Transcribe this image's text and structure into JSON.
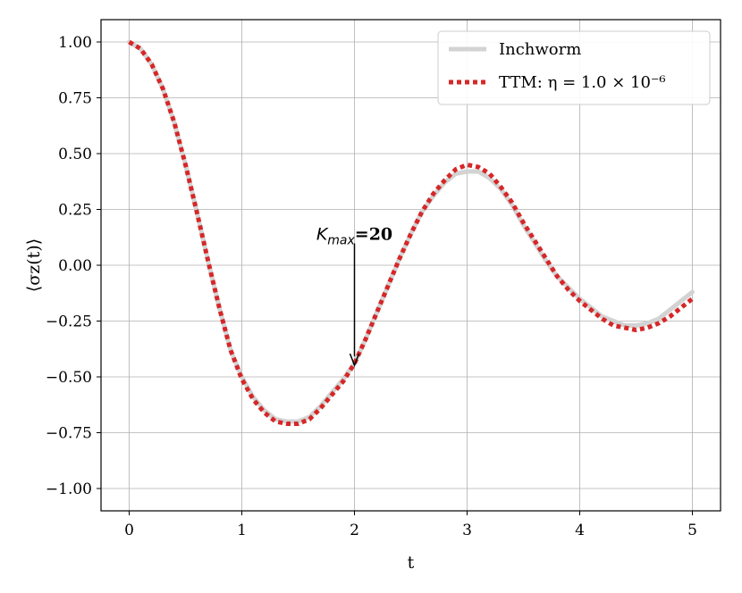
{
  "chart_data": {
    "type": "line",
    "xlabel": "t",
    "ylabel": "⟨σz(t)⟩",
    "xlim": [
      -0.25,
      5.25
    ],
    "ylim": [
      -1.1,
      1.1
    ],
    "x_ticks": [
      0,
      1,
      2,
      3,
      4,
      5
    ],
    "x_tick_labels": [
      "0",
      "1",
      "2",
      "3",
      "4",
      "5"
    ],
    "y_ticks": [
      1.0,
      0.75,
      0.5,
      0.25,
      0.0,
      -0.25,
      -0.5,
      -0.75,
      -1.0
    ],
    "y_tick_labels": [
      "1.00",
      "0.75",
      "0.50",
      "0.25",
      "0.00",
      "−0.25",
      "−0.50",
      "−0.75",
      "−1.00"
    ],
    "grid": true,
    "legend_position": "top-right",
    "series": [
      {
        "name": "Inchworm",
        "color": "#d3d3d3",
        "style": "solid",
        "x": [
          0,
          0.1,
          0.2,
          0.3,
          0.4,
          0.5,
          0.6,
          0.7,
          0.8,
          0.9,
          1.0,
          1.1,
          1.2,
          1.3,
          1.4,
          1.5,
          1.6,
          1.7,
          1.8,
          1.9,
          2.0,
          2.1,
          2.2,
          2.3,
          2.4,
          2.5,
          2.6,
          2.7,
          2.8,
          2.9,
          3.0,
          3.1,
          3.2,
          3.3,
          3.4,
          3.5,
          3.6,
          3.7,
          3.8,
          3.9,
          4.0,
          4.1,
          4.2,
          4.3,
          4.4,
          4.5,
          4.6,
          4.7,
          4.8,
          4.9,
          5.0
        ],
        "y": [
          1.0,
          0.97,
          0.9,
          0.79,
          0.64,
          0.45,
          0.24,
          0.02,
          -0.19,
          -0.38,
          -0.5,
          -0.59,
          -0.65,
          -0.69,
          -0.7,
          -0.7,
          -0.68,
          -0.63,
          -0.57,
          -0.51,
          -0.44,
          -0.33,
          -0.21,
          -0.09,
          0.03,
          0.14,
          0.24,
          0.31,
          0.37,
          0.41,
          0.42,
          0.42,
          0.39,
          0.34,
          0.27,
          0.18,
          0.1,
          0.02,
          -0.05,
          -0.1,
          -0.15,
          -0.19,
          -0.23,
          -0.25,
          -0.27,
          -0.27,
          -0.26,
          -0.24,
          -0.2,
          -0.16,
          -0.12
        ]
      },
      {
        "name": "TTM: η = 1.0 × 10⁻⁶",
        "color": "#d62728",
        "style": "dotted",
        "x": [
          0,
          0.1,
          0.2,
          0.3,
          0.4,
          0.5,
          0.6,
          0.7,
          0.8,
          0.9,
          1.0,
          1.1,
          1.2,
          1.3,
          1.4,
          1.5,
          1.6,
          1.7,
          1.8,
          1.9,
          2.0,
          2.1,
          2.2,
          2.3,
          2.4,
          2.5,
          2.6,
          2.7,
          2.8,
          2.9,
          3.0,
          3.1,
          3.2,
          3.3,
          3.4,
          3.5,
          3.6,
          3.7,
          3.8,
          3.9,
          4.0,
          4.1,
          4.2,
          4.3,
          4.4,
          4.5,
          4.6,
          4.7,
          4.8,
          4.9,
          5.0
        ],
        "y": [
          1.0,
          0.97,
          0.9,
          0.79,
          0.64,
          0.45,
          0.24,
          0.02,
          -0.19,
          -0.38,
          -0.51,
          -0.6,
          -0.66,
          -0.7,
          -0.71,
          -0.71,
          -0.69,
          -0.64,
          -0.58,
          -0.52,
          -0.44,
          -0.33,
          -0.21,
          -0.09,
          0.03,
          0.14,
          0.24,
          0.32,
          0.38,
          0.43,
          0.45,
          0.44,
          0.41,
          0.35,
          0.28,
          0.19,
          0.11,
          0.03,
          -0.05,
          -0.11,
          -0.16,
          -0.2,
          -0.24,
          -0.27,
          -0.28,
          -0.29,
          -0.28,
          -0.26,
          -0.23,
          -0.19,
          -0.15
        ]
      }
    ],
    "annotation": {
      "text_main": "K",
      "text_sub": "max",
      "text_suffix": "=20",
      "x": 2.0,
      "y": -0.44,
      "text_y": 0.05
    }
  }
}
